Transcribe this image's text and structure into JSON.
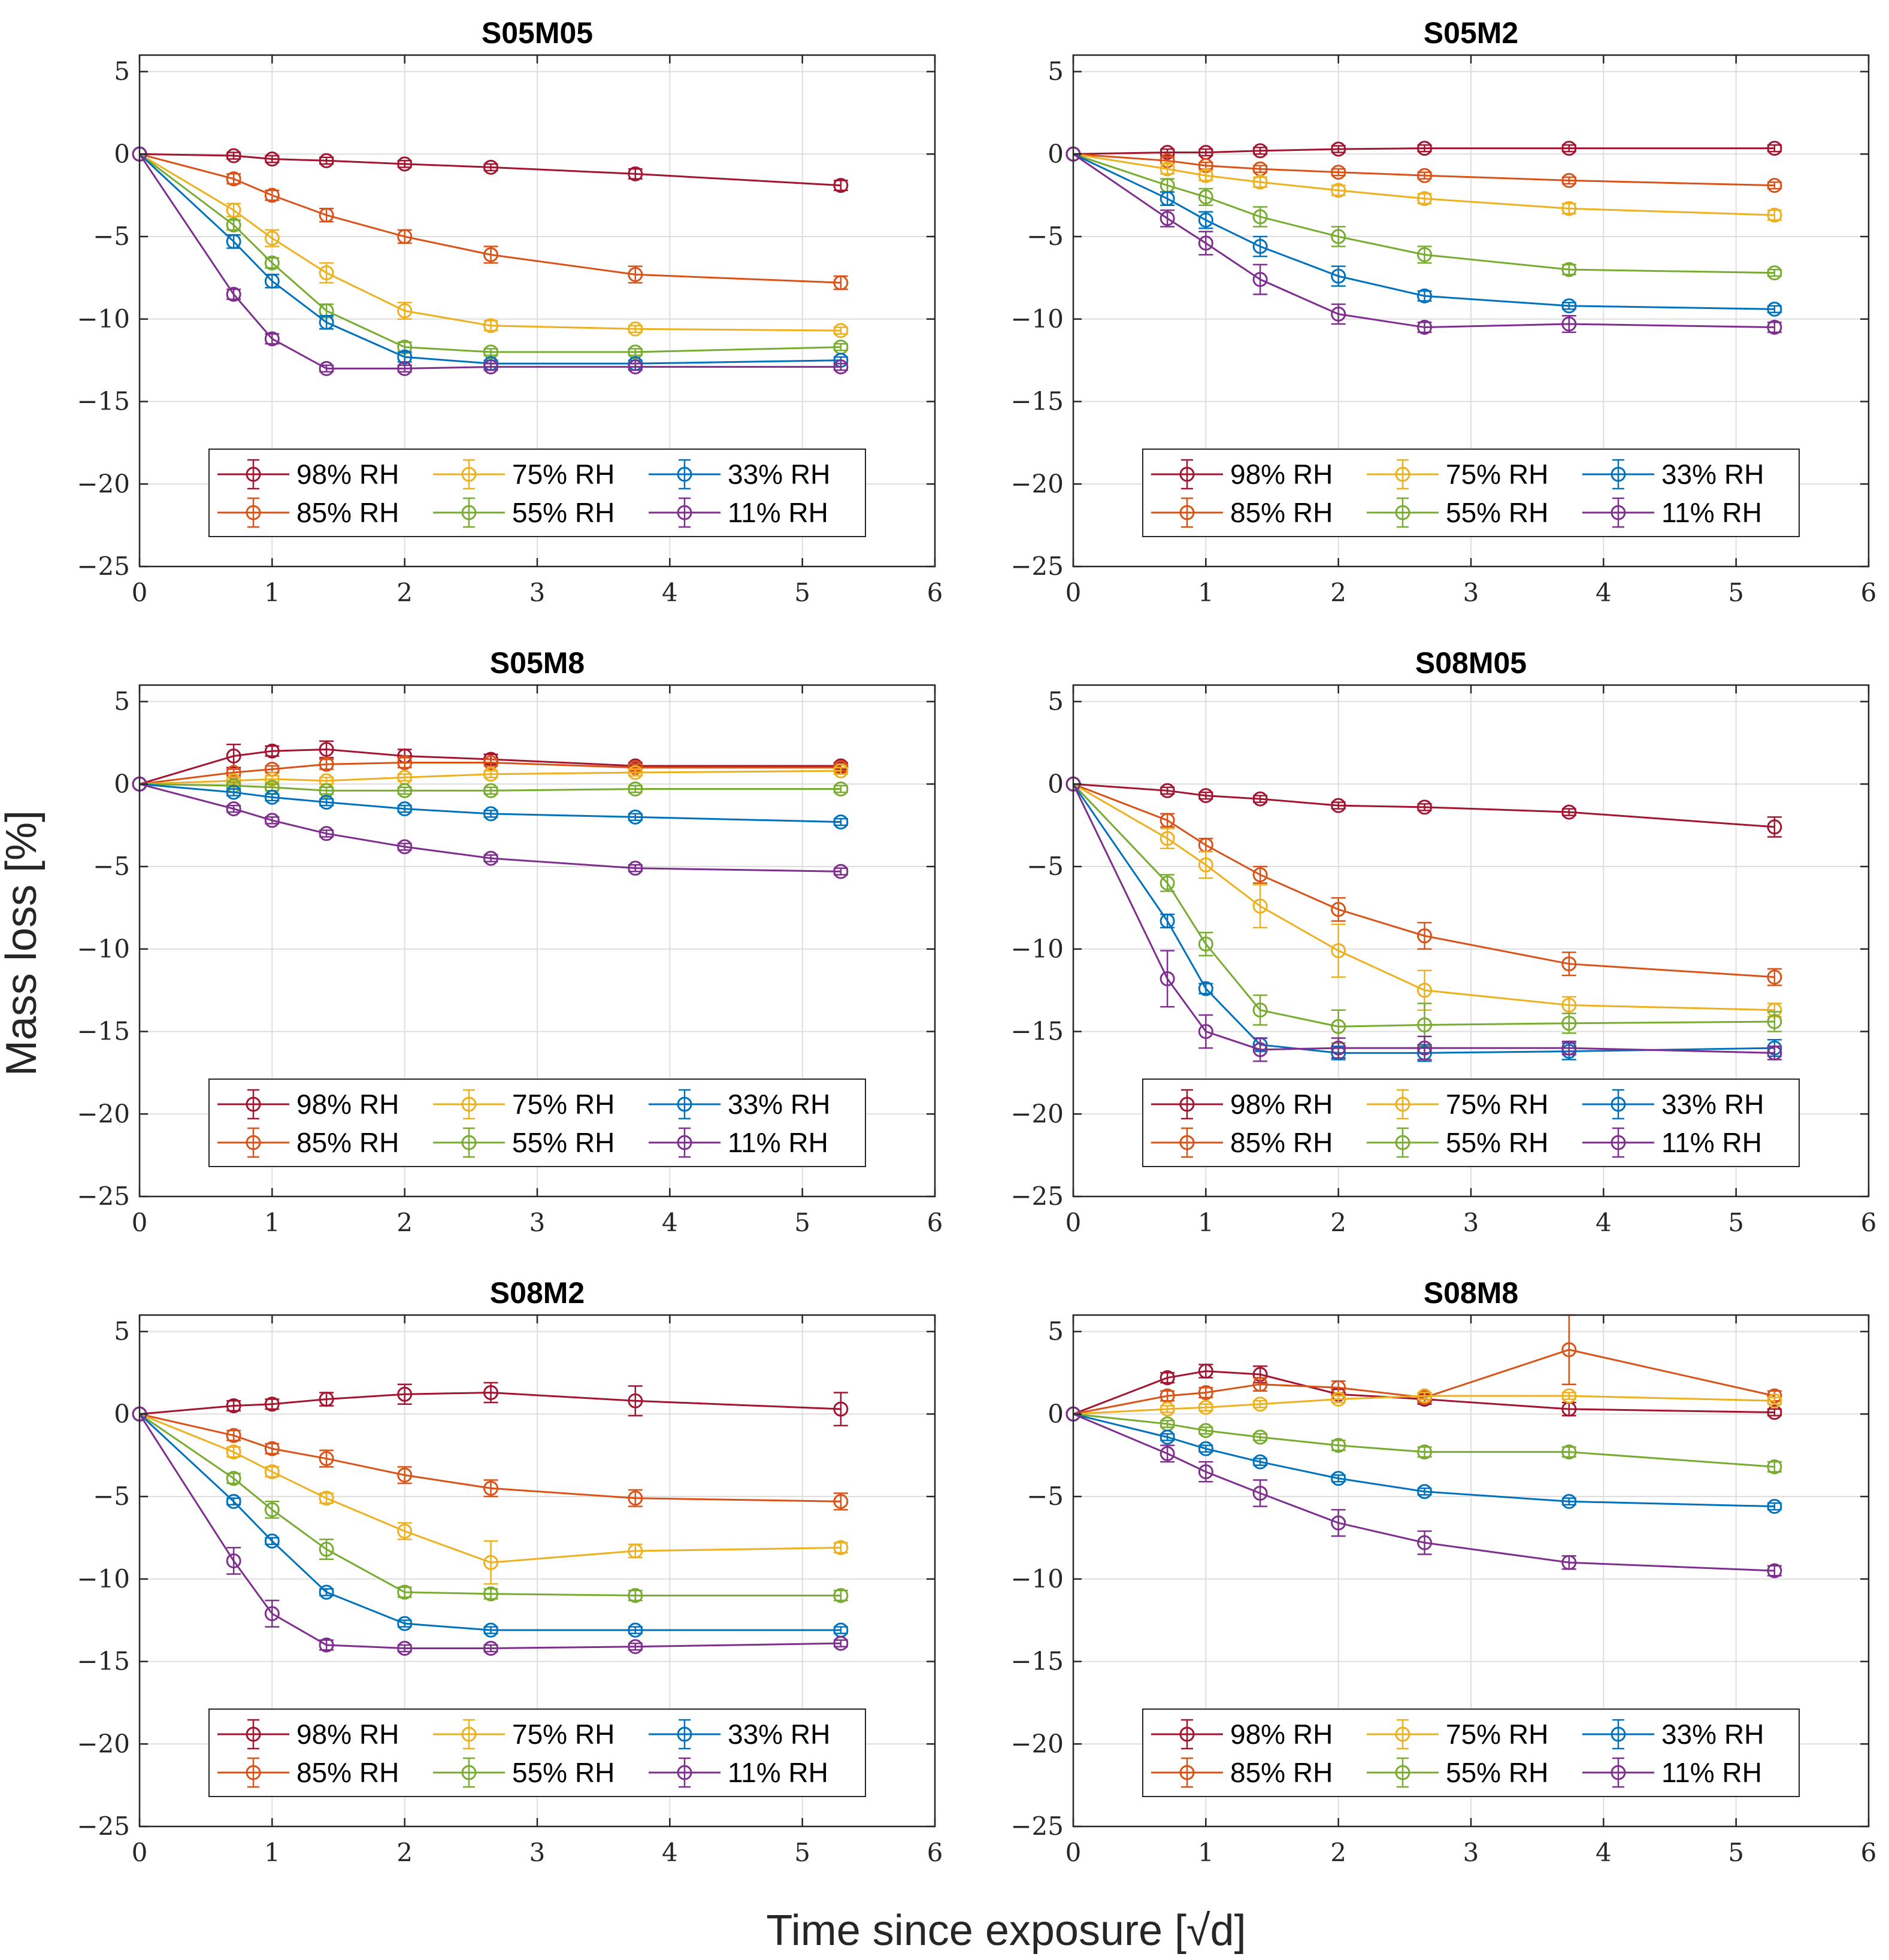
{
  "figure": {
    "xlabel": "Time since exposure [√d]",
    "ylabel": "Mass loss [%]"
  },
  "series_styles": [
    {
      "name": "98% RH",
      "color": "#A2142F"
    },
    {
      "name": "85% RH",
      "color": "#D95319"
    },
    {
      "name": "75% RH",
      "color": "#EDB120"
    },
    {
      "name": "55% RH",
      "color": "#77AC30"
    },
    {
      "name": "33% RH",
      "color": "#0072BD"
    },
    {
      "name": "11% RH",
      "color": "#7E2F8E"
    }
  ],
  "chart_data": [
    {
      "type": "line",
      "title": "S05M05",
      "x": [
        0,
        0.71,
        1.0,
        1.41,
        2.0,
        2.65,
        3.74,
        5.29
      ],
      "xlim": [
        0,
        6
      ],
      "ylim": [
        -25,
        6
      ],
      "xticks": [
        0,
        1,
        2,
        3,
        4,
        5,
        6
      ],
      "yticks": [
        5,
        0,
        -5,
        -10,
        -15,
        -20,
        -25
      ],
      "grid": true,
      "legend": "bottom-center",
      "series": [
        {
          "name": "98% RH",
          "values": [
            0,
            -0.1,
            -0.3,
            -0.4,
            -0.6,
            -0.8,
            -1.2,
            -1.9
          ],
          "errors": [
            0,
            0.2,
            0.2,
            0.2,
            0.2,
            0.2,
            0.3,
            0.3
          ]
        },
        {
          "name": "85% RH",
          "values": [
            0,
            -1.5,
            -2.5,
            -3.7,
            -5.0,
            -6.1,
            -7.3,
            -7.8
          ],
          "errors": [
            0,
            0.3,
            0.3,
            0.4,
            0.4,
            0.5,
            0.5,
            0.4
          ]
        },
        {
          "name": "75% RH",
          "values": [
            0,
            -3.4,
            -5.1,
            -7.2,
            -9.5,
            -10.4,
            -10.6,
            -10.7
          ],
          "errors": [
            0,
            0.4,
            0.5,
            0.6,
            0.5,
            0.3,
            0.2,
            0.2
          ]
        },
        {
          "name": "55% RH",
          "values": [
            0,
            -4.3,
            -6.6,
            -9.5,
            -11.7,
            -12.0,
            -12.0,
            -11.7
          ],
          "errors": [
            0,
            0.3,
            0.3,
            0.4,
            0.3,
            0.2,
            0.2,
            0.2
          ]
        },
        {
          "name": "33% RH",
          "values": [
            0,
            -5.3,
            -7.7,
            -10.2,
            -12.3,
            -12.7,
            -12.7,
            -12.5
          ],
          "errors": [
            0,
            0.4,
            0.4,
            0.4,
            0.3,
            0.2,
            0.2,
            0.2
          ]
        },
        {
          "name": "11% RH",
          "values": [
            0,
            -8.5,
            -11.2,
            -13.0,
            -13.0,
            -12.9,
            -12.9,
            -12.9
          ],
          "errors": [
            0,
            0.3,
            0.3,
            0.2,
            0.2,
            0.2,
            0.2,
            0.2
          ]
        }
      ]
    },
    {
      "type": "line",
      "title": "S05M2",
      "x": [
        0,
        0.71,
        1.0,
        1.41,
        2.0,
        2.65,
        3.74,
        5.29
      ],
      "xlim": [
        0,
        6
      ],
      "ylim": [
        -25,
        6
      ],
      "xticks": [
        0,
        1,
        2,
        3,
        4,
        5,
        6
      ],
      "yticks": [
        5,
        0,
        -5,
        -10,
        -15,
        -20,
        -25
      ],
      "grid": true,
      "legend": "bottom-center",
      "series": [
        {
          "name": "98% RH",
          "values": [
            0,
            0.1,
            0.1,
            0.2,
            0.3,
            0.35,
            0.35,
            0.35
          ],
          "errors": [
            0,
            0.2,
            0.2,
            0.2,
            0.2,
            0.2,
            0.2,
            0.2
          ]
        },
        {
          "name": "85% RH",
          "values": [
            0,
            -0.4,
            -0.7,
            -0.9,
            -1.1,
            -1.3,
            -1.6,
            -1.9
          ],
          "errors": [
            0,
            0.2,
            0.2,
            0.2,
            0.2,
            0.2,
            0.2,
            0.2
          ]
        },
        {
          "name": "75% RH",
          "values": [
            0,
            -0.9,
            -1.3,
            -1.7,
            -2.2,
            -2.7,
            -3.3,
            -3.7
          ],
          "errors": [
            0,
            0.3,
            0.3,
            0.3,
            0.3,
            0.3,
            0.3,
            0.3
          ]
        },
        {
          "name": "55% RH",
          "values": [
            0,
            -1.9,
            -2.6,
            -3.8,
            -5.0,
            -6.1,
            -7.0,
            -7.2
          ],
          "errors": [
            0,
            0.4,
            0.5,
            0.6,
            0.6,
            0.5,
            0.3,
            0.2
          ]
        },
        {
          "name": "33% RH",
          "values": [
            0,
            -2.7,
            -4.0,
            -5.6,
            -7.4,
            -8.6,
            -9.2,
            -9.4
          ],
          "errors": [
            0,
            0.4,
            0.5,
            0.6,
            0.6,
            0.3,
            0.2,
            0.2
          ]
        },
        {
          "name": "11% RH",
          "values": [
            0,
            -3.9,
            -5.4,
            -7.6,
            -9.7,
            -10.5,
            -10.3,
            -10.5
          ],
          "errors": [
            0,
            0.5,
            0.7,
            0.9,
            0.6,
            0.3,
            0.5,
            0.3
          ]
        }
      ]
    },
    {
      "type": "line",
      "title": "S05M8",
      "x": [
        0,
        0.71,
        1.0,
        1.41,
        2.0,
        2.65,
        3.74,
        5.29
      ],
      "xlim": [
        0,
        6
      ],
      "ylim": [
        -25,
        6
      ],
      "xticks": [
        0,
        1,
        2,
        3,
        4,
        5,
        6
      ],
      "yticks": [
        5,
        0,
        -5,
        -10,
        -15,
        -20,
        -25
      ],
      "grid": true,
      "legend": "bottom-center",
      "series": [
        {
          "name": "98% RH",
          "values": [
            0,
            1.7,
            2.0,
            2.1,
            1.7,
            1.5,
            1.1,
            1.1
          ],
          "errors": [
            0,
            0.7,
            0.3,
            0.5,
            0.4,
            0.3,
            0.2,
            0.2
          ]
        },
        {
          "name": "85% RH",
          "values": [
            0,
            0.7,
            0.9,
            1.2,
            1.3,
            1.3,
            1.0,
            1.0
          ],
          "errors": [
            0,
            0.2,
            0.2,
            0.3,
            0.3,
            0.2,
            0.2,
            0.2
          ]
        },
        {
          "name": "75% RH",
          "values": [
            0,
            0.2,
            0.3,
            0.2,
            0.4,
            0.6,
            0.7,
            0.8
          ],
          "errors": [
            0,
            0.2,
            0.2,
            0.2,
            0.2,
            0.2,
            0.2,
            0.2
          ]
        },
        {
          "name": "55% RH",
          "values": [
            0,
            -0.1,
            -0.2,
            -0.4,
            -0.4,
            -0.4,
            -0.3,
            -0.3
          ],
          "errors": [
            0,
            0.2,
            0.2,
            0.2,
            0.2,
            0.2,
            0.2,
            0.2
          ]
        },
        {
          "name": "33% RH",
          "values": [
            0,
            -0.5,
            -0.8,
            -1.1,
            -1.5,
            -1.8,
            -2.0,
            -2.3
          ],
          "errors": [
            0,
            0.2,
            0.2,
            0.2,
            0.2,
            0.2,
            0.2,
            0.2
          ]
        },
        {
          "name": "11% RH",
          "values": [
            0,
            -1.5,
            -2.2,
            -3.0,
            -3.8,
            -4.5,
            -5.1,
            -5.3
          ],
          "errors": [
            0,
            0.2,
            0.2,
            0.2,
            0.2,
            0.2,
            0.2,
            0.2
          ]
        }
      ]
    },
    {
      "type": "line",
      "title": "S08M05",
      "x": [
        0,
        0.71,
        1.0,
        1.41,
        2.0,
        2.65,
        3.74,
        5.29
      ],
      "xlim": [
        0,
        6
      ],
      "ylim": [
        -25,
        6
      ],
      "xticks": [
        0,
        1,
        2,
        3,
        4,
        5,
        6
      ],
      "yticks": [
        5,
        0,
        -5,
        -10,
        -15,
        -20,
        -25
      ],
      "grid": true,
      "legend": "bottom-center",
      "series": [
        {
          "name": "98% RH",
          "values": [
            0,
            -0.4,
            -0.7,
            -0.9,
            -1.3,
            -1.4,
            -1.7,
            -2.6
          ],
          "errors": [
            0,
            0.2,
            0.2,
            0.2,
            0.2,
            0.2,
            0.2,
            0.6
          ]
        },
        {
          "name": "85% RH",
          "values": [
            0,
            -2.2,
            -3.7,
            -5.5,
            -7.6,
            -9.2,
            -10.9,
            -11.7
          ],
          "errors": [
            0,
            0.4,
            0.4,
            0.5,
            0.7,
            0.8,
            0.7,
            0.5
          ]
        },
        {
          "name": "75% RH",
          "values": [
            0,
            -3.3,
            -4.9,
            -7.4,
            -10.1,
            -12.5,
            -13.4,
            -13.7
          ],
          "errors": [
            0,
            0.6,
            0.8,
            1.3,
            1.6,
            1.2,
            0.5,
            0.4
          ]
        },
        {
          "name": "55% RH",
          "values": [
            0,
            -6.0,
            -9.7,
            -13.7,
            -14.7,
            -14.6,
            -14.5,
            -14.4
          ],
          "errors": [
            0,
            0.5,
            0.7,
            0.9,
            1.0,
            1.3,
            0.6,
            0.6
          ]
        },
        {
          "name": "33% RH",
          "values": [
            0,
            -8.3,
            -12.4,
            -15.8,
            -16.3,
            -16.3,
            -16.2,
            -16.0
          ],
          "errors": [
            0,
            0.4,
            0.3,
            0.4,
            0.4,
            0.5,
            0.5,
            0.5
          ]
        },
        {
          "name": "11% RH",
          "values": [
            0,
            -11.8,
            -15.0,
            -16.1,
            -16.0,
            -16.0,
            -16.0,
            -16.3
          ],
          "errors": [
            0,
            1.7,
            1.0,
            0.7,
            0.6,
            0.7,
            0.4,
            0.4
          ]
        }
      ]
    },
    {
      "type": "line",
      "title": "S08M2",
      "x": [
        0,
        0.71,
        1.0,
        1.41,
        2.0,
        2.65,
        3.74,
        5.29
      ],
      "xlim": [
        0,
        6
      ],
      "ylim": [
        -25,
        6
      ],
      "xticks": [
        0,
        1,
        2,
        3,
        4,
        5,
        6
      ],
      "yticks": [
        5,
        0,
        -5,
        -10,
        -15,
        -20,
        -25
      ],
      "grid": true,
      "legend": "bottom-center",
      "series": [
        {
          "name": "98% RH",
          "values": [
            0,
            0.5,
            0.6,
            0.9,
            1.2,
            1.3,
            0.8,
            0.3
          ],
          "errors": [
            0,
            0.3,
            0.3,
            0.4,
            0.6,
            0.6,
            0.9,
            1.0
          ]
        },
        {
          "name": "85% RH",
          "values": [
            0,
            -1.3,
            -2.1,
            -2.7,
            -3.7,
            -4.5,
            -5.1,
            -5.3
          ],
          "errors": [
            0,
            0.3,
            0.3,
            0.5,
            0.5,
            0.5,
            0.5,
            0.5
          ]
        },
        {
          "name": "75% RH",
          "values": [
            0,
            -2.3,
            -3.5,
            -5.1,
            -7.1,
            -9.0,
            -8.3,
            -8.1
          ],
          "errors": [
            0,
            0.3,
            0.3,
            0.3,
            0.5,
            1.3,
            0.4,
            0.3
          ]
        },
        {
          "name": "55% RH",
          "values": [
            0,
            -3.9,
            -5.8,
            -8.2,
            -10.8,
            -10.9,
            -11.0,
            -11.0
          ],
          "errors": [
            0,
            0.3,
            0.5,
            0.6,
            0.3,
            0.3,
            0.3,
            0.3
          ]
        },
        {
          "name": "33% RH",
          "values": [
            0,
            -5.3,
            -7.7,
            -10.8,
            -12.7,
            -13.1,
            -13.1,
            -13.1
          ],
          "errors": [
            0,
            0.2,
            0.2,
            0.2,
            0.2,
            0.2,
            0.2,
            0.2
          ]
        },
        {
          "name": "11% RH",
          "values": [
            0,
            -8.9,
            -12.1,
            -14.0,
            -14.2,
            -14.2,
            -14.1,
            -13.9
          ],
          "errors": [
            0,
            0.8,
            0.8,
            0.3,
            0.2,
            0.2,
            0.2,
            0.2
          ]
        }
      ]
    },
    {
      "type": "line",
      "title": "S08M8",
      "x": [
        0,
        0.71,
        1.0,
        1.41,
        2.0,
        2.65,
        3.74,
        5.29
      ],
      "xlim": [
        0,
        6
      ],
      "ylim": [
        -25,
        6
      ],
      "xticks": [
        0,
        1,
        2,
        3,
        4,
        5,
        6
      ],
      "yticks": [
        5,
        0,
        -5,
        -10,
        -15,
        -20,
        -25
      ],
      "grid": true,
      "legend": "bottom-center",
      "series": [
        {
          "name": "98% RH",
          "values": [
            0,
            2.2,
            2.6,
            2.4,
            1.2,
            0.9,
            0.3,
            0.1
          ],
          "errors": [
            0,
            0.3,
            0.4,
            0.5,
            0.3,
            0.3,
            0.4,
            0.2
          ]
        },
        {
          "name": "85% RH",
          "values": [
            0,
            1.1,
            1.3,
            1.8,
            1.6,
            1.0,
            3.9,
            1.1
          ],
          "errors": [
            0,
            0.3,
            0.3,
            0.4,
            0.4,
            0.3,
            2.1,
            0.3
          ]
        },
        {
          "name": "75% RH",
          "values": [
            0,
            0.3,
            0.4,
            0.6,
            0.9,
            1.1,
            1.1,
            0.8
          ],
          "errors": [
            0,
            0.2,
            0.2,
            0.2,
            0.2,
            0.2,
            0.2,
            0.2
          ]
        },
        {
          "name": "55% RH",
          "values": [
            0,
            -0.6,
            -1.0,
            -1.4,
            -1.9,
            -2.3,
            -2.3,
            -3.2
          ],
          "errors": [
            0,
            0.2,
            0.2,
            0.2,
            0.3,
            0.3,
            0.3,
            0.3
          ]
        },
        {
          "name": "33% RH",
          "values": [
            0,
            -1.4,
            -2.1,
            -2.9,
            -3.9,
            -4.7,
            -5.3,
            -5.6
          ],
          "errors": [
            0,
            0.2,
            0.2,
            0.2,
            0.2,
            0.2,
            0.2,
            0.2
          ]
        },
        {
          "name": "11% RH",
          "values": [
            0,
            -2.4,
            -3.5,
            -4.8,
            -6.6,
            -7.8,
            -9.0,
            -9.5
          ],
          "errors": [
            0,
            0.5,
            0.6,
            0.8,
            0.8,
            0.7,
            0.4,
            0.3
          ]
        }
      ]
    }
  ]
}
